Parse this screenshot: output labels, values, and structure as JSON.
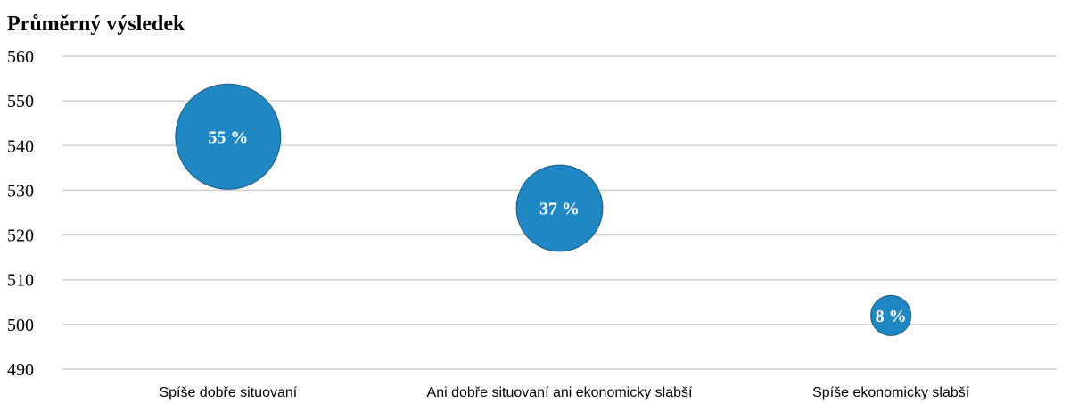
{
  "chart_data": {
    "type": "scatter",
    "title": "Průměrný výsledek",
    "ylim": [
      490,
      560
    ],
    "yticks": [
      560,
      550,
      540,
      530,
      520,
      510,
      500,
      490
    ],
    "grid": true,
    "colors": {
      "bubble": "#1f88c4",
      "bubble_stroke": "#1a5a80",
      "grid": "#d0d0d0"
    },
    "points": [
      {
        "category": "Spíše dobře situovaní",
        "y": 542,
        "share": 55,
        "label": "55 %"
      },
      {
        "category": "Ani dobře situovaní ani ekonomicky slabší",
        "y": 526,
        "share": 37,
        "label": "37 %"
      },
      {
        "category": "Spíše ekonomicky slabší",
        "y": 502,
        "share": 8,
        "label": "8 %"
      }
    ]
  }
}
